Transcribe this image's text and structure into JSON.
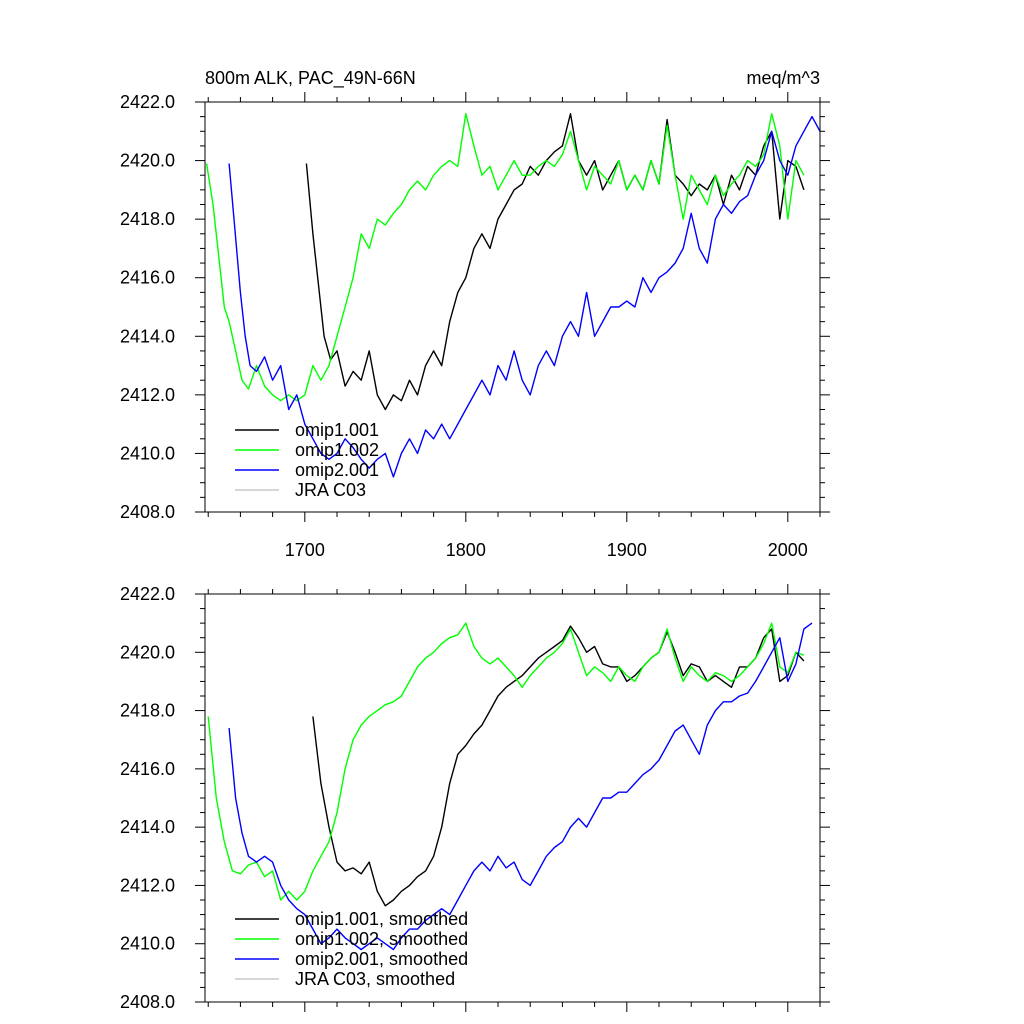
{
  "chart_data": [
    {
      "type": "line",
      "title_left": "800m ALK, PAC_49N-66N",
      "title_right": "meq/m^3",
      "xlabel": "",
      "ylabel": "",
      "xlim": [
        1638,
        2020
      ],
      "ylim": [
        2408,
        2422
      ],
      "x_ticks": [
        1700,
        1800,
        1900,
        2000
      ],
      "x_tick_labels": [
        "1700",
        "1800",
        "1900",
        "2000"
      ],
      "y_ticks": [
        2408,
        2410,
        2412,
        2414,
        2416,
        2418,
        2420,
        2422
      ],
      "y_tick_labels": [
        "2408.0",
        "2410.0",
        "2412.0",
        "2414.0",
        "2416.0",
        "2418.0",
        "2420.0",
        "2422.0"
      ],
      "legend_position": "bottom-left",
      "series": [
        {
          "name": "omip1.001",
          "color": "#000000",
          "x": [
            1701,
            1705,
            1708,
            1712,
            1716,
            1720,
            1725,
            1730,
            1735,
            1740,
            1745,
            1750,
            1755,
            1760,
            1765,
            1770,
            1775,
            1780,
            1785,
            1790,
            1795,
            1800,
            1805,
            1810,
            1815,
            1820,
            1825,
            1830,
            1835,
            1840,
            1845,
            1850,
            1855,
            1860,
            1865,
            1870,
            1875,
            1880,
            1885,
            1890,
            1895,
            1900,
            1905,
            1910,
            1915,
            1920,
            1925,
            1930,
            1935,
            1940,
            1945,
            1950,
            1955,
            1960,
            1965,
            1970,
            1975,
            1980,
            1985,
            1990,
            1995,
            2000,
            2005,
            2010
          ],
          "y": [
            2419.9,
            2417.5,
            2416.0,
            2414.0,
            2413.2,
            2413.5,
            2412.3,
            2412.8,
            2412.5,
            2413.5,
            2412.0,
            2411.5,
            2412.0,
            2411.8,
            2412.5,
            2412.0,
            2413.0,
            2413.5,
            2413.0,
            2414.5,
            2415.5,
            2416.0,
            2417.0,
            2417.5,
            2417.0,
            2418.0,
            2418.5,
            2419.0,
            2419.2,
            2419.8,
            2419.5,
            2420.0,
            2420.3,
            2420.5,
            2421.6,
            2420.0,
            2419.5,
            2420.0,
            2419.0,
            2419.5,
            2420.0,
            2419.0,
            2419.5,
            2419.0,
            2420.0,
            2419.2,
            2421.4,
            2419.5,
            2419.2,
            2418.8,
            2419.2,
            2419.0,
            2419.5,
            2418.5,
            2419.5,
            2419.0,
            2419.8,
            2419.5,
            2420.5,
            2421.0,
            2418.0,
            2420.0,
            2419.8,
            2419.0
          ]
        },
        {
          "name": "omip1.002",
          "color": "#00ff00",
          "x": [
            1639,
            1643,
            1647,
            1650,
            1653,
            1657,
            1661,
            1665,
            1670,
            1675,
            1680,
            1685,
            1690,
            1695,
            1700,
            1705,
            1710,
            1715,
            1720,
            1725,
            1730,
            1735,
            1740,
            1745,
            1750,
            1755,
            1760,
            1765,
            1770,
            1775,
            1780,
            1785,
            1790,
            1795,
            1800,
            1805,
            1810,
            1815,
            1820,
            1825,
            1830,
            1835,
            1840,
            1845,
            1850,
            1855,
            1860,
            1865,
            1870,
            1875,
            1880,
            1885,
            1890,
            1895,
            1900,
            1905,
            1910,
            1915,
            1920,
            1925,
            1930,
            1935,
            1940,
            1945,
            1950,
            1955,
            1960,
            1965,
            1970,
            1975,
            1980,
            1985,
            1990,
            1995,
            2000,
            2005,
            2010
          ],
          "y": [
            2419.9,
            2418.5,
            2416.5,
            2415.0,
            2414.5,
            2413.5,
            2412.5,
            2412.2,
            2413.0,
            2412.3,
            2412.0,
            2411.8,
            2412.0,
            2411.8,
            2412.0,
            2413.0,
            2412.5,
            2413.0,
            2414.0,
            2415.0,
            2416.0,
            2417.5,
            2417.0,
            2418.0,
            2417.8,
            2418.2,
            2418.5,
            2419.0,
            2419.3,
            2419.0,
            2419.5,
            2419.8,
            2420.0,
            2419.8,
            2421.6,
            2420.5,
            2419.5,
            2419.8,
            2419.0,
            2419.5,
            2420.0,
            2419.5,
            2419.5,
            2419.8,
            2420.0,
            2419.8,
            2420.2,
            2421.0,
            2420.0,
            2419.0,
            2419.8,
            2419.5,
            2419.2,
            2420.0,
            2419.0,
            2419.5,
            2419.0,
            2420.0,
            2419.2,
            2421.2,
            2419.5,
            2418.0,
            2419.5,
            2419.0,
            2418.5,
            2419.5,
            2418.8,
            2419.2,
            2419.5,
            2420.0,
            2419.8,
            2420.2,
            2421.6,
            2420.5,
            2418.0,
            2420.0,
            2419.5
          ]
        },
        {
          "name": "omip2.001",
          "color": "#0000ff",
          "x": [
            1653,
            1656,
            1660,
            1663,
            1666,
            1670,
            1675,
            1680,
            1685,
            1690,
            1695,
            1700,
            1705,
            1710,
            1715,
            1720,
            1725,
            1730,
            1735,
            1740,
            1745,
            1750,
            1755,
            1760,
            1765,
            1770,
            1775,
            1780,
            1785,
            1790,
            1795,
            1800,
            1805,
            1810,
            1815,
            1820,
            1825,
            1830,
            1835,
            1840,
            1845,
            1850,
            1855,
            1860,
            1865,
            1870,
            1875,
            1880,
            1885,
            1890,
            1895,
            1900,
            1905,
            1910,
            1915,
            1920,
            1925,
            1930,
            1935,
            1940,
            1945,
            1950,
            1955,
            1960,
            1965,
            1970,
            1975,
            1980,
            1985,
            1990,
            1995,
            2000,
            2005,
            2010,
            2015,
            2020
          ],
          "y": [
            2419.9,
            2418.0,
            2415.5,
            2414.0,
            2413.0,
            2412.8,
            2413.3,
            2412.5,
            2413.0,
            2411.5,
            2412.0,
            2411.0,
            2410.5,
            2410.0,
            2409.8,
            2410.0,
            2410.5,
            2410.2,
            2409.8,
            2409.5,
            2409.8,
            2410.0,
            2409.2,
            2410.0,
            2410.5,
            2410.0,
            2410.8,
            2410.5,
            2411.0,
            2410.5,
            2411.0,
            2411.5,
            2412.0,
            2412.5,
            2412.0,
            2413.0,
            2412.5,
            2413.5,
            2412.5,
            2412.0,
            2413.0,
            2413.5,
            2413.0,
            2414.0,
            2414.5,
            2414.0,
            2415.5,
            2414.0,
            2414.5,
            2415.0,
            2415.0,
            2415.2,
            2415.0,
            2416.0,
            2415.5,
            2416.0,
            2416.2,
            2416.5,
            2417.0,
            2418.2,
            2417.0,
            2416.5,
            2418.0,
            2418.5,
            2418.2,
            2418.6,
            2418.8,
            2419.5,
            2420.0,
            2421.0,
            2420.0,
            2419.5,
            2420.5,
            2421.0,
            2421.5,
            2421.0
          ]
        },
        {
          "name": "JRA C03",
          "color": "#c8c8c8",
          "x": [],
          "y": []
        }
      ]
    },
    {
      "type": "line",
      "xlim": [
        1638,
        2020
      ],
      "ylim": [
        2408,
        2422
      ],
      "x_ticks": [
        1700,
        1800,
        1900,
        2000
      ],
      "y_ticks": [
        2408,
        2410,
        2412,
        2414,
        2416,
        2418,
        2420,
        2422
      ],
      "y_tick_labels": [
        "2408.0",
        "2410.0",
        "2412.0",
        "2414.0",
        "2416.0",
        "2418.0",
        "2420.0",
        "2422.0"
      ],
      "legend_position": "bottom-left",
      "series": [
        {
          "name": "omip1.001, smoothed",
          "color": "#000000",
          "x": [
            1705,
            1710,
            1715,
            1720,
            1725,
            1730,
            1735,
            1740,
            1745,
            1750,
            1755,
            1760,
            1765,
            1770,
            1775,
            1780,
            1785,
            1790,
            1795,
            1800,
            1805,
            1810,
            1815,
            1820,
            1825,
            1830,
            1835,
            1840,
            1845,
            1850,
            1855,
            1860,
            1865,
            1870,
            1875,
            1880,
            1885,
            1890,
            1895,
            1900,
            1905,
            1910,
            1915,
            1920,
            1925,
            1930,
            1935,
            1940,
            1945,
            1950,
            1955,
            1960,
            1965,
            1970,
            1975,
            1980,
            1985,
            1990,
            1995,
            2000,
            2005,
            2010
          ],
          "y": [
            2417.8,
            2415.5,
            2414.0,
            2412.8,
            2412.5,
            2412.6,
            2412.4,
            2412.8,
            2411.8,
            2411.3,
            2411.5,
            2411.8,
            2412.0,
            2412.3,
            2412.5,
            2413.0,
            2414.0,
            2415.5,
            2416.5,
            2416.8,
            2417.2,
            2417.5,
            2418.0,
            2418.5,
            2418.8,
            2419.0,
            2419.2,
            2419.5,
            2419.8,
            2420.0,
            2420.2,
            2420.4,
            2420.9,
            2420.5,
            2420.0,
            2420.2,
            2419.6,
            2419.5,
            2419.5,
            2419.0,
            2419.2,
            2419.5,
            2419.8,
            2420.0,
            2420.7,
            2420.0,
            2419.2,
            2419.6,
            2419.5,
            2419.0,
            2419.2,
            2419.0,
            2418.8,
            2419.5,
            2419.5,
            2419.8,
            2420.5,
            2420.8,
            2419.0,
            2419.2,
            2420.0,
            2419.7
          ]
        },
        {
          "name": "omip1.002, smoothed",
          "color": "#00ff00",
          "x": [
            1640,
            1645,
            1650,
            1655,
            1660,
            1665,
            1670,
            1675,
            1680,
            1685,
            1690,
            1695,
            1700,
            1705,
            1710,
            1715,
            1720,
            1725,
            1730,
            1735,
            1740,
            1745,
            1750,
            1755,
            1760,
            1765,
            1770,
            1775,
            1780,
            1785,
            1790,
            1795,
            1800,
            1805,
            1810,
            1815,
            1820,
            1825,
            1830,
            1835,
            1840,
            1845,
            1850,
            1855,
            1860,
            1865,
            1870,
            1875,
            1880,
            1885,
            1890,
            1895,
            1900,
            1905,
            1910,
            1915,
            1920,
            1925,
            1930,
            1935,
            1940,
            1945,
            1950,
            1955,
            1960,
            1965,
            1970,
            1975,
            1980,
            1985,
            1990,
            1995,
            2000,
            2005,
            2010
          ],
          "y": [
            2417.8,
            2415.0,
            2413.5,
            2412.5,
            2412.4,
            2412.7,
            2412.8,
            2412.3,
            2412.5,
            2411.5,
            2411.8,
            2411.5,
            2411.8,
            2412.5,
            2413.0,
            2413.5,
            2414.5,
            2416.0,
            2417.0,
            2417.5,
            2417.8,
            2418.0,
            2418.2,
            2418.3,
            2418.5,
            2419.0,
            2419.5,
            2419.8,
            2420.0,
            2420.3,
            2420.5,
            2420.6,
            2421.0,
            2420.2,
            2419.8,
            2419.6,
            2419.8,
            2419.5,
            2419.2,
            2418.8,
            2419.2,
            2419.5,
            2419.8,
            2420.0,
            2420.3,
            2420.8,
            2420.0,
            2419.2,
            2419.5,
            2419.3,
            2419.0,
            2419.5,
            2419.2,
            2419.0,
            2419.5,
            2419.8,
            2420.0,
            2420.8,
            2419.8,
            2419.0,
            2419.5,
            2419.2,
            2419.0,
            2419.3,
            2419.2,
            2419.0,
            2419.2,
            2419.5,
            2419.8,
            2420.3,
            2421.0,
            2419.5,
            2419.3,
            2420.0,
            2419.9
          ]
        },
        {
          "name": "omip2.001, smoothed",
          "color": "#0000ff",
          "x": [
            1653,
            1657,
            1661,
            1665,
            1670,
            1675,
            1680,
            1685,
            1690,
            1695,
            1700,
            1705,
            1710,
            1715,
            1720,
            1725,
            1730,
            1735,
            1740,
            1745,
            1750,
            1755,
            1760,
            1765,
            1770,
            1775,
            1780,
            1785,
            1790,
            1795,
            1800,
            1805,
            1810,
            1815,
            1820,
            1825,
            1830,
            1835,
            1840,
            1845,
            1850,
            1855,
            1860,
            1865,
            1870,
            1875,
            1880,
            1885,
            1890,
            1895,
            1900,
            1905,
            1910,
            1915,
            1920,
            1925,
            1930,
            1935,
            1940,
            1945,
            1950,
            1955,
            1960,
            1965,
            1970,
            1975,
            1980,
            1985,
            1990,
            1995,
            2000,
            2005,
            2010,
            2015
          ],
          "y": [
            2417.4,
            2415.0,
            2413.8,
            2413.0,
            2412.8,
            2413.0,
            2412.8,
            2412.0,
            2411.5,
            2411.2,
            2411.0,
            2410.5,
            2410.0,
            2410.2,
            2410.5,
            2410.2,
            2410.0,
            2409.8,
            2410.0,
            2410.2,
            2410.0,
            2409.8,
            2410.2,
            2410.5,
            2410.5,
            2410.8,
            2411.0,
            2411.2,
            2411.0,
            2411.5,
            2412.0,
            2412.5,
            2412.8,
            2412.5,
            2413.0,
            2412.6,
            2412.8,
            2412.2,
            2412.0,
            2412.5,
            2413.0,
            2413.3,
            2413.5,
            2414.0,
            2414.3,
            2414.0,
            2414.5,
            2415.0,
            2415.0,
            2415.2,
            2415.2,
            2415.5,
            2415.8,
            2416.0,
            2416.3,
            2416.8,
            2417.3,
            2417.5,
            2417.0,
            2416.5,
            2417.5,
            2418.0,
            2418.3,
            2418.3,
            2418.5,
            2418.6,
            2419.0,
            2419.5,
            2420.0,
            2420.5,
            2419.0,
            2419.6,
            2420.8,
            2421.0
          ]
        },
        {
          "name": "JRA C03, smoothed",
          "color": "#c8c8c8",
          "x": [],
          "y": []
        }
      ]
    }
  ]
}
